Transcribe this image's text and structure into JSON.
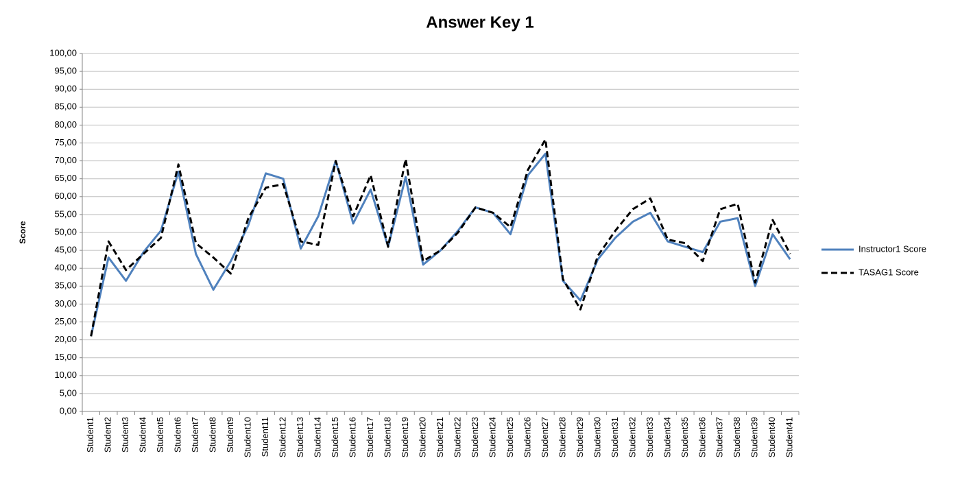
{
  "chart_data": {
    "type": "line",
    "title": "Answer Key 1",
    "y_label": "Score",
    "categories": [
      "Student1",
      "Student2",
      "Student3",
      "Student4",
      "Student5",
      "Student6",
      "Student7",
      "Student8",
      "Student9",
      "Student10",
      "Student11",
      "Student12",
      "Student13",
      "Student14",
      "Student15",
      "Student16",
      "Student17",
      "Student18",
      "Student19",
      "Student20",
      "Student21",
      "Student22",
      "Student23",
      "Student24",
      "Student25",
      "Student26",
      "Student27",
      "Student28",
      "Student29",
      "Student30",
      "Student31",
      "Student32",
      "Student33",
      "Student34",
      "Student35",
      "Student36",
      "Student37",
      "Student38",
      "Student39",
      "Student40",
      "Student41"
    ],
    "series": [
      {
        "name": "Instructor1 Score",
        "color": "#4f81bd",
        "dash": "solid",
        "values": [
          21,
          43,
          36.5,
          44.5,
          50.5,
          67,
          44,
          34,
          42,
          52,
          66.5,
          65,
          45.5,
          54.5,
          70,
          52.5,
          62,
          46,
          65.5,
          41,
          45,
          50.5,
          57,
          55.5,
          49.5,
          66,
          72,
          36.5,
          31,
          42.5,
          48.5,
          53,
          55.5,
          47.5,
          46,
          44.5,
          53,
          54,
          35,
          49.5,
          42.5
        ]
      },
      {
        "name": "TASAG1 Score",
        "color": "#000000",
        "dash": "dashed",
        "values": [
          21,
          47.5,
          39.5,
          44,
          48.5,
          69,
          47,
          43,
          38.5,
          54,
          62.5,
          63.5,
          47.5,
          46.5,
          70,
          54.5,
          66,
          46,
          70.5,
          42,
          45,
          50,
          57,
          55.5,
          51.5,
          67.5,
          76,
          37,
          28.5,
          43.5,
          50.5,
          56.5,
          59.5,
          48,
          47,
          42,
          56.5,
          58,
          36,
          53.5,
          44
        ]
      }
    ],
    "ylim": [
      0,
      100
    ],
    "yticks": [
      {
        "value": 0,
        "label": "0,00"
      },
      {
        "value": 5,
        "label": "5,00"
      },
      {
        "value": 10,
        "label": "10,00"
      },
      {
        "value": 15,
        "label": "15,00"
      },
      {
        "value": 20,
        "label": "20,00"
      },
      {
        "value": 25,
        "label": "25,00"
      },
      {
        "value": 30,
        "label": "30,00"
      },
      {
        "value": 35,
        "label": "35,00"
      },
      {
        "value": 40,
        "label": "40,00"
      },
      {
        "value": 45,
        "label": "45,00"
      },
      {
        "value": 50,
        "label": "50,00"
      },
      {
        "value": 55,
        "label": "55,00"
      },
      {
        "value": 60,
        "label": "60,00"
      },
      {
        "value": 65,
        "label": "65,00"
      },
      {
        "value": 70,
        "label": "70,00"
      },
      {
        "value": 75,
        "label": "75,00"
      },
      {
        "value": 80,
        "label": "80,00"
      },
      {
        "value": 85,
        "label": "85,00"
      },
      {
        "value": 90,
        "label": "90,00"
      },
      {
        "value": 95,
        "label": "95,00"
      },
      {
        "value": 100,
        "label": "100,00"
      }
    ],
    "grid": true,
    "legend": "right"
  }
}
